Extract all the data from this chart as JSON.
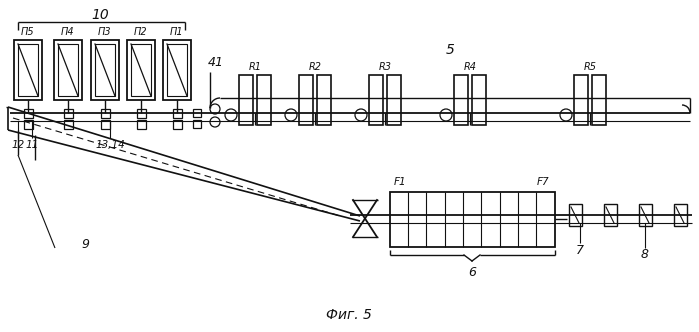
{
  "bg_color": "#ffffff",
  "lc": "#111111",
  "title": "Фиг. 5",
  "furnace_labels": [
    "П5",
    "П4",
    "П3",
    "П2",
    "П1"
  ],
  "roughing_labels": [
    "R1",
    "R2",
    "R3",
    "R4",
    "R5"
  ],
  "label_10": "10",
  "label_41": "41",
  "label_5": "5",
  "label_12": "12",
  "label_11": "11",
  "label_13_14": "13,14",
  "label_9": "9",
  "label_6": "6",
  "label_7": "7",
  "label_8": "8",
  "label_F1": "F1",
  "label_F7": "F7"
}
